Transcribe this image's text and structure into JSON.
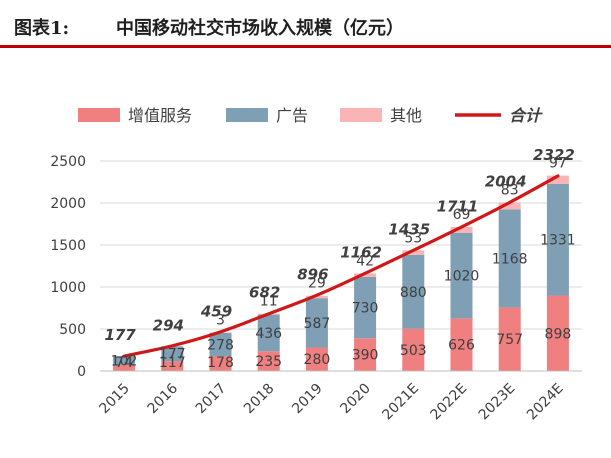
{
  "figure": {
    "prefix": "图表1:",
    "title": "中国移动社交市场收入规模（亿元）"
  },
  "chart_data": {
    "type": "bar",
    "stacked": true,
    "title": "中国移动社交市场收入规模（亿元）",
    "categories": [
      "2015",
      "2016",
      "2017",
      "2018",
      "2019",
      "2020",
      "2021E",
      "2022E",
      "2023E",
      "2024E"
    ],
    "series": [
      {
        "name": "增值服务",
        "color": "#f07f80",
        "values": [
          74,
          117,
          178,
          235,
          280,
          390,
          503,
          626,
          757,
          898
        ]
      },
      {
        "name": "广告",
        "color": "#7f9fb5",
        "values": [
          102,
          177,
          278,
          436,
          587,
          730,
          880,
          1020,
          1168,
          1331
        ]
      },
      {
        "name": "其他",
        "color": "#f9b5b5",
        "values": [
          1,
          0,
          3,
          11,
          29,
          42,
          53,
          69,
          83,
          97
        ]
      }
    ],
    "segment_labels": [
      [
        "74",
        "117",
        "178",
        "235",
        "280",
        "390",
        "503",
        "626",
        "757",
        "898"
      ],
      [
        "102",
        "177",
        "278",
        "436",
        "587",
        "730",
        "880",
        "1020",
        "1168",
        "1331"
      ],
      [
        "",
        "",
        "3",
        "11",
        "29",
        "42",
        "53",
        "69",
        "83",
        "97"
      ]
    ],
    "total": {
      "name": "合计",
      "color": "#d01818",
      "values": [
        177,
        294,
        459,
        682,
        896,
        1162,
        1435,
        1711,
        2004,
        2322
      ],
      "labels": [
        "177",
        "294",
        "459",
        "682",
        "896",
        "1162",
        "1435",
        "1711",
        "2004",
        "2322"
      ]
    },
    "y_ticks": [
      "0",
      "500",
      "1000",
      "1500",
      "2000",
      "2500"
    ],
    "ylim": [
      0,
      2500
    ],
    "grid": true,
    "legend_position": "top"
  }
}
